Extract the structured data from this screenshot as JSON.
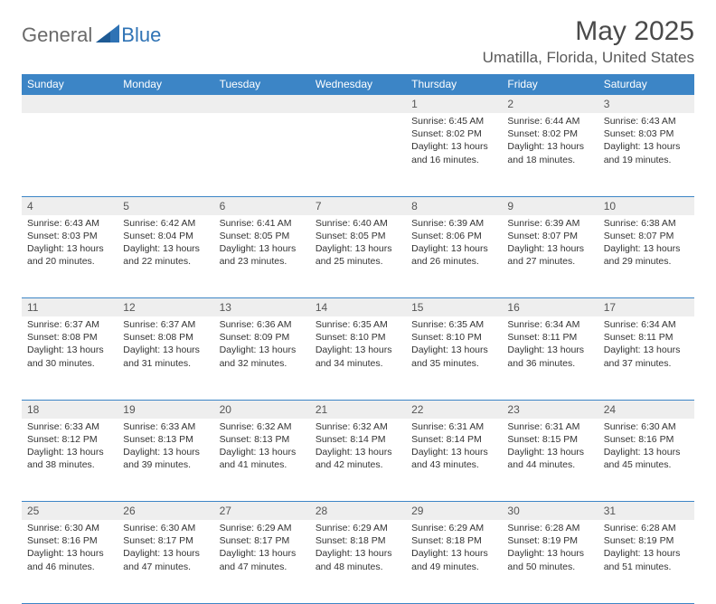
{
  "brand": {
    "part1": "General",
    "part2": "Blue"
  },
  "title": "May 2025",
  "location": "Umatilla, Florida, United States",
  "colors": {
    "header_bg": "#3c85c6",
    "header_fg": "#ffffff",
    "daynum_bg": "#eeeeee",
    "row_border": "#3c85c6",
    "text": "#333333",
    "brand_gray": "#6a6a6a",
    "brand_blue": "#2f73b5"
  },
  "weekdays": [
    "Sunday",
    "Monday",
    "Tuesday",
    "Wednesday",
    "Thursday",
    "Friday",
    "Saturday"
  ],
  "weeks": [
    [
      null,
      null,
      null,
      null,
      {
        "n": "1",
        "sr": "6:45 AM",
        "ss": "8:02 PM",
        "dl": "13 hours and 16 minutes."
      },
      {
        "n": "2",
        "sr": "6:44 AM",
        "ss": "8:02 PM",
        "dl": "13 hours and 18 minutes."
      },
      {
        "n": "3",
        "sr": "6:43 AM",
        "ss": "8:03 PM",
        "dl": "13 hours and 19 minutes."
      }
    ],
    [
      {
        "n": "4",
        "sr": "6:43 AM",
        "ss": "8:03 PM",
        "dl": "13 hours and 20 minutes."
      },
      {
        "n": "5",
        "sr": "6:42 AM",
        "ss": "8:04 PM",
        "dl": "13 hours and 22 minutes."
      },
      {
        "n": "6",
        "sr": "6:41 AM",
        "ss": "8:05 PM",
        "dl": "13 hours and 23 minutes."
      },
      {
        "n": "7",
        "sr": "6:40 AM",
        "ss": "8:05 PM",
        "dl": "13 hours and 25 minutes."
      },
      {
        "n": "8",
        "sr": "6:39 AM",
        "ss": "8:06 PM",
        "dl": "13 hours and 26 minutes."
      },
      {
        "n": "9",
        "sr": "6:39 AM",
        "ss": "8:07 PM",
        "dl": "13 hours and 27 minutes."
      },
      {
        "n": "10",
        "sr": "6:38 AM",
        "ss": "8:07 PM",
        "dl": "13 hours and 29 minutes."
      }
    ],
    [
      {
        "n": "11",
        "sr": "6:37 AM",
        "ss": "8:08 PM",
        "dl": "13 hours and 30 minutes."
      },
      {
        "n": "12",
        "sr": "6:37 AM",
        "ss": "8:08 PM",
        "dl": "13 hours and 31 minutes."
      },
      {
        "n": "13",
        "sr": "6:36 AM",
        "ss": "8:09 PM",
        "dl": "13 hours and 32 minutes."
      },
      {
        "n": "14",
        "sr": "6:35 AM",
        "ss": "8:10 PM",
        "dl": "13 hours and 34 minutes."
      },
      {
        "n": "15",
        "sr": "6:35 AM",
        "ss": "8:10 PM",
        "dl": "13 hours and 35 minutes."
      },
      {
        "n": "16",
        "sr": "6:34 AM",
        "ss": "8:11 PM",
        "dl": "13 hours and 36 minutes."
      },
      {
        "n": "17",
        "sr": "6:34 AM",
        "ss": "8:11 PM",
        "dl": "13 hours and 37 minutes."
      }
    ],
    [
      {
        "n": "18",
        "sr": "6:33 AM",
        "ss": "8:12 PM",
        "dl": "13 hours and 38 minutes."
      },
      {
        "n": "19",
        "sr": "6:33 AM",
        "ss": "8:13 PM",
        "dl": "13 hours and 39 minutes."
      },
      {
        "n": "20",
        "sr": "6:32 AM",
        "ss": "8:13 PM",
        "dl": "13 hours and 41 minutes."
      },
      {
        "n": "21",
        "sr": "6:32 AM",
        "ss": "8:14 PM",
        "dl": "13 hours and 42 minutes."
      },
      {
        "n": "22",
        "sr": "6:31 AM",
        "ss": "8:14 PM",
        "dl": "13 hours and 43 minutes."
      },
      {
        "n": "23",
        "sr": "6:31 AM",
        "ss": "8:15 PM",
        "dl": "13 hours and 44 minutes."
      },
      {
        "n": "24",
        "sr": "6:30 AM",
        "ss": "8:16 PM",
        "dl": "13 hours and 45 minutes."
      }
    ],
    [
      {
        "n": "25",
        "sr": "6:30 AM",
        "ss": "8:16 PM",
        "dl": "13 hours and 46 minutes."
      },
      {
        "n": "26",
        "sr": "6:30 AM",
        "ss": "8:17 PM",
        "dl": "13 hours and 47 minutes."
      },
      {
        "n": "27",
        "sr": "6:29 AM",
        "ss": "8:17 PM",
        "dl": "13 hours and 47 minutes."
      },
      {
        "n": "28",
        "sr": "6:29 AM",
        "ss": "8:18 PM",
        "dl": "13 hours and 48 minutes."
      },
      {
        "n": "29",
        "sr": "6:29 AM",
        "ss": "8:18 PM",
        "dl": "13 hours and 49 minutes."
      },
      {
        "n": "30",
        "sr": "6:28 AM",
        "ss": "8:19 PM",
        "dl": "13 hours and 50 minutes."
      },
      {
        "n": "31",
        "sr": "6:28 AM",
        "ss": "8:19 PM",
        "dl": "13 hours and 51 minutes."
      }
    ]
  ],
  "labels": {
    "sunrise": "Sunrise:",
    "sunset": "Sunset:",
    "daylight": "Daylight:"
  }
}
